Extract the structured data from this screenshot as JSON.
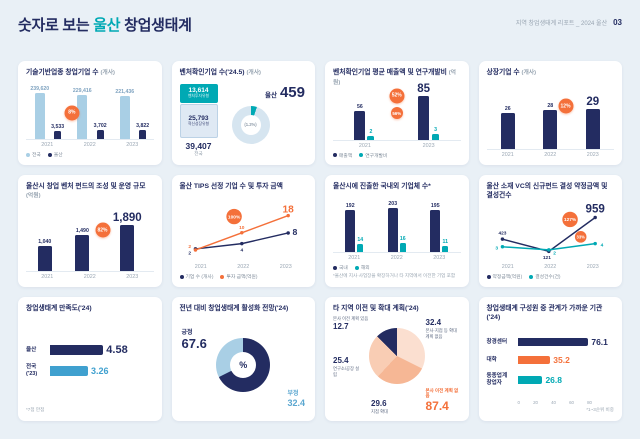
{
  "page": {
    "title_prefix": "숫자로 보는 ",
    "title_highlight": "울산",
    "title_suffix": " 창업생태계",
    "report_label": "지역 창업생태계 리포트 _ 2024 울산",
    "page_number": "03"
  },
  "colors": {
    "navy": "#232c61",
    "teal": "#00a9b4",
    "orange": "#f4703a",
    "light_blue": "#a9cfe5",
    "background": "#e9f0f6"
  },
  "chart_data": [
    {
      "id": "tech-startups",
      "type": "grouped-bar",
      "title": "기술기반업종 창업기업 수",
      "unit": "(개사)",
      "categories": [
        "2021",
        "2022",
        "2023"
      ],
      "series": [
        {
          "name": "전국",
          "color": "#a9cfe5",
          "label_color": "#7fa3c0",
          "values": [
            239620,
            229416,
            221436
          ],
          "labels": [
            "239,620",
            "229,416",
            "221,436"
          ]
        },
        {
          "name": "울산",
          "color": "#232c61",
          "label_color": "#232c61",
          "values": [
            3533,
            3702,
            3822
          ],
          "labels": [
            "3,533",
            "3,702",
            "3,822"
          ]
        }
      ],
      "badge": "8%",
      "legend": [
        "전국",
        "울산"
      ]
    },
    {
      "id": "venture-companies",
      "type": "venture",
      "title": "벤처확인기업 수('24.5)",
      "unit": "(개사)",
      "national": {
        "segments": [
          {
            "value": "13,614",
            "label": "벤처투자유형",
            "color": "#00a9b4",
            "text": "#ffffff"
          },
          {
            "value": "25,793",
            "label": "혁신성장유형",
            "color": "#dfe9f4",
            "text": "#232c61"
          }
        ],
        "total": "39,407",
        "total_label": "전국"
      },
      "ulsan": {
        "label": "울산",
        "value": "459",
        "share": "(1.2%)"
      }
    },
    {
      "id": "venture-financials",
      "type": "grouped-bar",
      "title": "벤처확인기업 평균 매출액 및 연구개발비",
      "unit": "(억원)",
      "categories": [
        "2021",
        "2023"
      ],
      "series": [
        {
          "name": "매출액",
          "color": "#232c61",
          "label_color": "#232c61",
          "values": [
            56,
            85
          ],
          "labels": [
            "56",
            "85"
          ],
          "big_last": true
        },
        {
          "name": "연구개발비",
          "color": "#00a9b4",
          "label_color": "#00a9b4",
          "values": [
            2,
            3
          ],
          "labels": [
            "2",
            "3"
          ]
        }
      ],
      "badges": [
        "52%",
        "56%"
      ],
      "legend": [
        "매출액",
        "연구개발비"
      ]
    },
    {
      "id": "listed-companies",
      "type": "grouped-bar",
      "title": "상장기업 수",
      "unit": "(개사)",
      "categories": [
        "2021",
        "2022",
        "2023"
      ],
      "series": [
        {
          "name": "상장기업",
          "color": "#232c61",
          "label_color": "#232c61",
          "values": [
            26,
            28,
            29
          ],
          "labels": [
            "26",
            "28",
            "29"
          ],
          "big_last": true
        }
      ],
      "badge": "12%"
    },
    {
      "id": "venture-fund",
      "type": "grouped-bar",
      "title": "울산시 창업 벤처 펀드의 조성 및 운영 규모",
      "unit": "(억원)",
      "categories": [
        "2021",
        "2022",
        "2023"
      ],
      "series": [
        {
          "name": "펀드 규모",
          "color": "#232c61",
          "label_color": "#232c61",
          "values": [
            1040,
            1490,
            1890
          ],
          "labels": [
            "1,040",
            "1,490",
            "1,890"
          ],
          "big_last": true
        }
      ],
      "badge": "82%"
    },
    {
      "id": "tips",
      "type": "line",
      "title": "울산 TIPS 선정 기업 수 및 투자 금액",
      "unit": "",
      "x": [
        "2021",
        "2022",
        "2023"
      ],
      "series": [
        {
          "name": "기업 수 (개사)",
          "color": "#232c61",
          "values": [
            2,
            4,
            8
          ],
          "labels": [
            "2",
            "4",
            "8"
          ],
          "big_last": true
        },
        {
          "name": "투자 금액(억원)",
          "color": "#f4703a",
          "values": [
            2,
            10,
            18
          ],
          "labels": [
            "2",
            "10",
            "18"
          ],
          "big_last": true
        }
      ],
      "badges": [
        "100%"
      ],
      "legend": [
        "기업 수 (개사)",
        "투자 금액(억원)"
      ]
    },
    {
      "id": "companies-into-ulsan",
      "type": "grouped-bar",
      "title": "울산시에 진출한 국내외 기업체 수*",
      "unit": "",
      "categories": [
        "2021",
        "2022",
        "2023"
      ],
      "series": [
        {
          "name": "국내",
          "color": "#232c61",
          "label_color": "#232c61",
          "values": [
            192,
            203,
            195
          ],
          "labels": [
            "192",
            "203",
            "195"
          ]
        },
        {
          "name": "해외",
          "color": "#00a9b4",
          "label_color": "#00a9b4",
          "values": [
            14,
            16,
            11
          ],
          "labels": [
            "14",
            "16",
            "11"
          ]
        }
      ],
      "legend": [
        "국내",
        "해외"
      ],
      "footnote": "*울산에 지사·사업장을 확장하거나 타 지역에서 이전한 기업 포함"
    },
    {
      "id": "vc-funds",
      "type": "line",
      "title": "울산 소재 VC의 신규펀드 결성 약정금액 및 결성건수",
      "unit": "",
      "x": [
        "2021",
        "2022",
        "2023"
      ],
      "series": [
        {
          "name": "약정금액(억원)",
          "color": "#232c61",
          "values": [
            423,
            121,
            959
          ],
          "labels": [
            "423",
            "121",
            "959"
          ],
          "big_last": true
        },
        {
          "name": "결성건수(건)",
          "color": "#00a9b4",
          "values": [
            3,
            2,
            4
          ],
          "labels": [
            "3",
            "2",
            "4"
          ]
        }
      ],
      "badges": [
        "127%",
        "33%"
      ],
      "legend": [
        "약정금액(억원)",
        "결성건수(건)"
      ]
    },
    {
      "id": "satisfaction",
      "type": "hbar",
      "title": "창업생태계 만족도('24)",
      "unit": "",
      "max": 7,
      "rows": [
        {
          "label": "울산",
          "value": 4.58,
          "display": "4.58",
          "color": "#232c61"
        },
        {
          "label": "전국\n('23)",
          "value": 3.26,
          "display": "3.26",
          "color": "#3fa0cf"
        }
      ],
      "footnote": "*7점 만점"
    },
    {
      "id": "outlook",
      "type": "donut",
      "title": "전년 대비 창업생태계 활성화 전망('24)",
      "unit": "",
      "center": "%",
      "slices": [
        {
          "label": "긍정",
          "value": 67.6,
          "display": "67.6",
          "color": "#232c61",
          "text_color": "#232c61"
        },
        {
          "label": "부정",
          "value": 32.4,
          "display": "32.4",
          "color": "#a9cfe5",
          "text_color": "#5ba7d0"
        }
      ]
    },
    {
      "id": "relocation",
      "type": "pie",
      "title": "타 지역 이전 및 확대 계획('24)",
      "unit": "",
      "slices": [
        {
          "label": "본사·지점 등 확대 계획 없음",
          "value": 32.4,
          "display": "32.4",
          "color": "#fbdfd0"
        },
        {
          "label": "지점 확대",
          "value": 29.6,
          "display": "29.6",
          "color": "#f6b795"
        },
        {
          "label": "연구소/공장 설립",
          "value": 25.4,
          "display": "25.4",
          "color": "#f9cdb4"
        },
        {
          "label": "본사 이전 계획 있음",
          "value": 12.7,
          "display": "12.7",
          "color": "#232c61",
          "label_first": true
        }
      ],
      "summary": {
        "label": "본사 이전 계획 없음",
        "value": "87.4"
      }
    },
    {
      "id": "close-organizations",
      "type": "hbar",
      "title": "창업생태계 구성원 중 관계가 가까운 기관('24)",
      "unit": "",
      "max": 80,
      "rows": [
        {
          "label": "창경센터",
          "value": 76.1,
          "display": "76.1",
          "color": "#232c61"
        },
        {
          "label": "대학",
          "value": 35.2,
          "display": "35.2",
          "color": "#f4703a"
        },
        {
          "label": "동종업계\n창업자",
          "value": 26.8,
          "display": "26.8",
          "color": "#00a9b4"
        }
      ],
      "ticks": [
        "0",
        "20",
        "40",
        "60",
        "80"
      ],
      "footnote": "*1~3순위 비중"
    }
  ]
}
